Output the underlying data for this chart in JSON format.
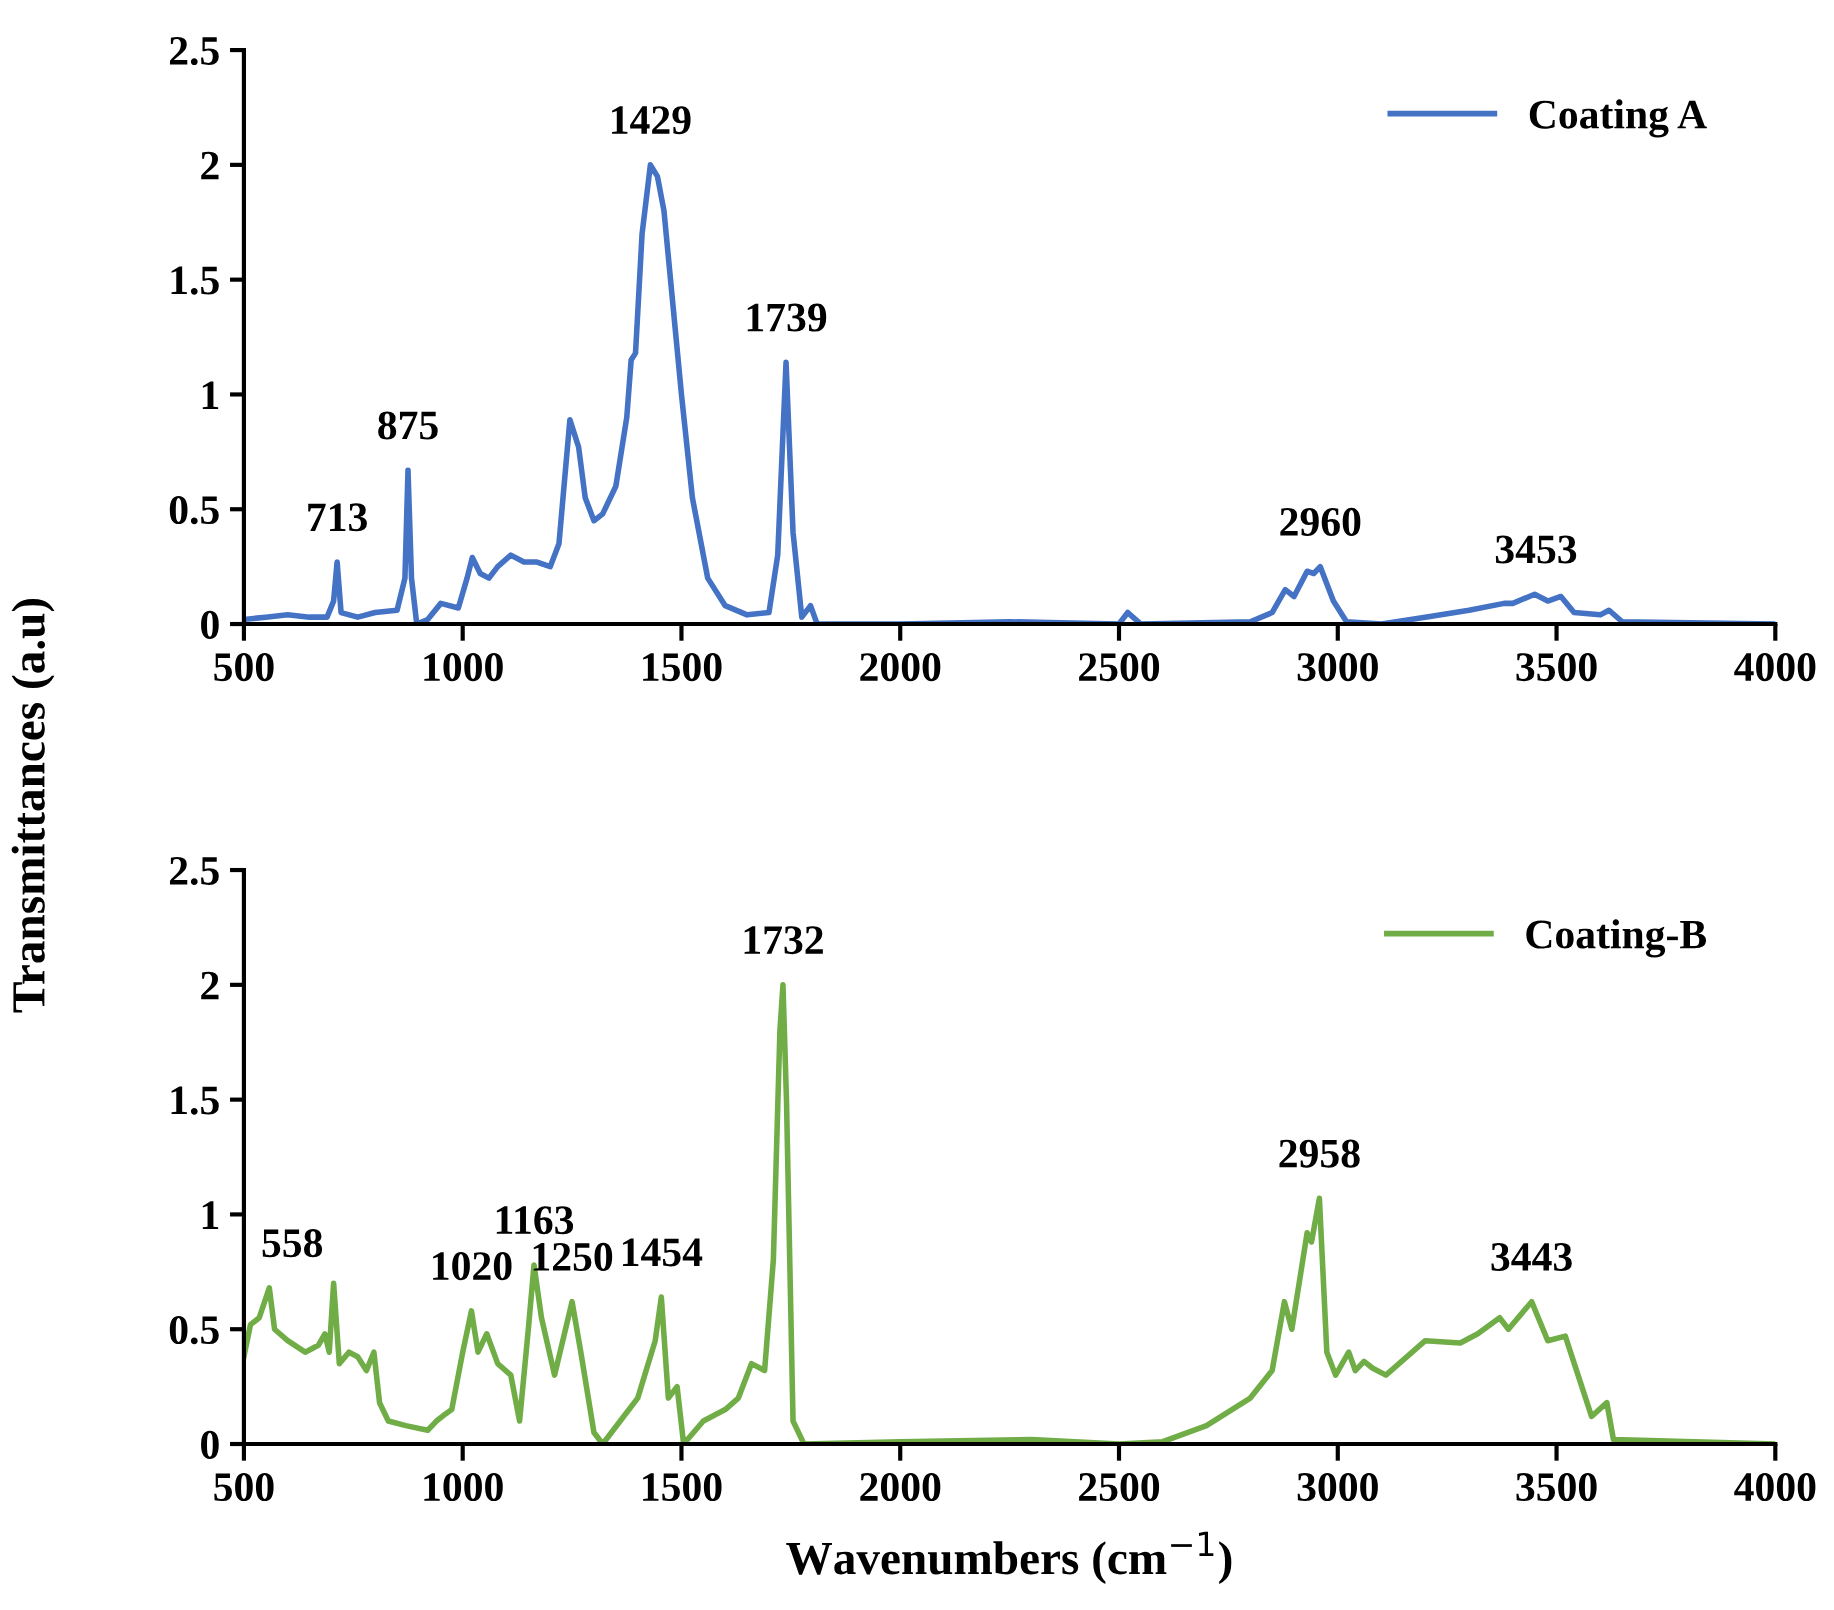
{
  "chart_data": [
    {
      "type": "line",
      "ylabel": "Transmittances (a.u)",
      "legend": "top right",
      "grid": false,
      "marker": "none",
      "line_style": "solid",
      "xlim": [
        500,
        4000
      ],
      "xticks": [
        500,
        1000,
        1500,
        2000,
        2500,
        3000,
        3500,
        4000
      ],
      "ylim": [
        0,
        2.5
      ],
      "yticks": [
        0,
        0.5,
        1,
        1.5,
        2,
        2.5
      ],
      "series": [
        {
          "name": "Coating A",
          "color": "#4472c4",
          "x": [
            500,
            550,
            600,
            650,
            690,
            705,
            713,
            722,
            760,
            800,
            850,
            868,
            875,
            883,
            895,
            920,
            950,
            990,
            1010,
            1022,
            1040,
            1060,
            1080,
            1110,
            1140,
            1170,
            1200,
            1220,
            1245,
            1265,
            1280,
            1300,
            1320,
            1350,
            1375,
            1385,
            1395,
            1410,
            1429,
            1445,
            1460,
            1480,
            1500,
            1525,
            1560,
            1600,
            1650,
            1700,
            1720,
            1739,
            1755,
            1775,
            1795,
            1810,
            2000,
            2250,
            2500,
            2520,
            2550,
            2800,
            2850,
            2880,
            2900,
            2930,
            2945,
            2960,
            2990,
            3020,
            3100,
            3200,
            3300,
            3380,
            3400,
            3450,
            3480,
            3510,
            3540,
            3600,
            3620,
            3650,
            4000
          ],
          "values": [
            0.02,
            0.03,
            0.04,
            0.03,
            0.03,
            0.1,
            0.27,
            0.05,
            0.03,
            0.05,
            0.06,
            0.2,
            0.67,
            0.2,
            0.0,
            0.02,
            0.09,
            0.07,
            0.2,
            0.29,
            0.22,
            0.2,
            0.25,
            0.3,
            0.27,
            0.27,
            0.25,
            0.35,
            0.89,
            0.77,
            0.55,
            0.45,
            0.48,
            0.6,
            0.9,
            1.15,
            1.18,
            1.7,
            2.0,
            1.95,
            1.8,
            1.4,
            1.0,
            0.55,
            0.2,
            0.08,
            0.04,
            0.05,
            0.3,
            1.14,
            0.4,
            0.03,
            0.08,
            0.0,
            0.0,
            0.01,
            0.0,
            0.05,
            0.0,
            0.01,
            0.05,
            0.15,
            0.12,
            0.23,
            0.22,
            0.25,
            0.1,
            0.01,
            0.0,
            0.03,
            0.06,
            0.09,
            0.09,
            0.13,
            0.1,
            0.12,
            0.05,
            0.04,
            0.06,
            0.01,
            0.0
          ]
        }
      ],
      "annotations": [
        {
          "text": "713",
          "x": 713,
          "y": 0.27
        },
        {
          "text": "875",
          "x": 875,
          "y": 0.67
        },
        {
          "text": "1429",
          "x": 1429,
          "y": 2.0
        },
        {
          "text": "1739",
          "x": 1739,
          "y": 1.14
        },
        {
          "text": "2960",
          "x": 2960,
          "y": 0.25
        },
        {
          "text": "3453",
          "x": 3453,
          "y": 0.13
        }
      ]
    },
    {
      "type": "line",
      "xlabel": "Wavenumbers (cm$^{−1}$)",
      "legend": "top right",
      "grid": false,
      "marker": "none",
      "line_style": "solid",
      "xlim": [
        500,
        4000
      ],
      "xticks": [
        500,
        1000,
        1500,
        2000,
        2500,
        3000,
        3500,
        4000
      ],
      "ylim": [
        0,
        2.5
      ],
      "yticks": [
        0,
        0.5,
        1,
        1.5,
        2,
        2.5
      ],
      "series": [
        {
          "name": "Coating-B",
          "color": "#70ad47",
          "x": [
            500,
            515,
            535,
            558,
            570,
            600,
            640,
            670,
            685,
            695,
            705,
            718,
            740,
            760,
            780,
            797,
            810,
            830,
            870,
            920,
            940,
            960,
            975,
            1000,
            1020,
            1035,
            1055,
            1080,
            1110,
            1130,
            1150,
            1163,
            1180,
            1210,
            1250,
            1270,
            1300,
            1320,
            1360,
            1400,
            1440,
            1454,
            1470,
            1490,
            1505,
            1550,
            1600,
            1630,
            1660,
            1690,
            1710,
            1725,
            1732,
            1740,
            1755,
            1780,
            2000,
            2300,
            2500,
            2600,
            2700,
            2800,
            2850,
            2878,
            2895,
            2930,
            2940,
            2958,
            2975,
            2995,
            3025,
            3040,
            3060,
            3080,
            3110,
            3200,
            3280,
            3320,
            3370,
            3390,
            3443,
            3480,
            3520,
            3580,
            3615,
            3630,
            4000
          ],
          "values": [
            0.38,
            0.52,
            0.55,
            0.68,
            0.5,
            0.45,
            0.4,
            0.43,
            0.48,
            0.4,
            0.7,
            0.35,
            0.4,
            0.38,
            0.32,
            0.4,
            0.18,
            0.1,
            0.08,
            0.06,
            0.1,
            0.13,
            0.15,
            0.4,
            0.58,
            0.4,
            0.48,
            0.35,
            0.3,
            0.1,
            0.5,
            0.78,
            0.55,
            0.3,
            0.62,
            0.4,
            0.05,
            0.0,
            0.1,
            0.2,
            0.45,
            0.64,
            0.2,
            0.25,
            0.0,
            0.1,
            0.15,
            0.2,
            0.35,
            0.32,
            0.8,
            1.8,
            2.0,
            1.5,
            0.1,
            0.0,
            0.01,
            0.02,
            0.0,
            0.01,
            0.08,
            0.2,
            0.32,
            0.62,
            0.5,
            0.92,
            0.88,
            1.07,
            0.4,
            0.3,
            0.4,
            0.32,
            0.36,
            0.33,
            0.3,
            0.45,
            0.44,
            0.48,
            0.55,
            0.5,
            0.62,
            0.45,
            0.47,
            0.12,
            0.18,
            0.02,
            0.0
          ]
        }
      ],
      "annotations": [
        {
          "text": "558",
          "x": 558,
          "y": 0.68
        },
        {
          "text": "1020",
          "x": 1020,
          "y": 0.58
        },
        {
          "text": "1163",
          "x": 1163,
          "y": 0.78
        },
        {
          "text": "1250",
          "x": 1250,
          "y": 0.62
        },
        {
          "text": "1454",
          "x": 1454,
          "y": 0.64
        },
        {
          "text": "1732",
          "x": 1732,
          "y": 2.0
        },
        {
          "text": "2958",
          "x": 2958,
          "y": 1.07
        },
        {
          "text": "3443",
          "x": 3443,
          "y": 0.62
        }
      ]
    }
  ]
}
